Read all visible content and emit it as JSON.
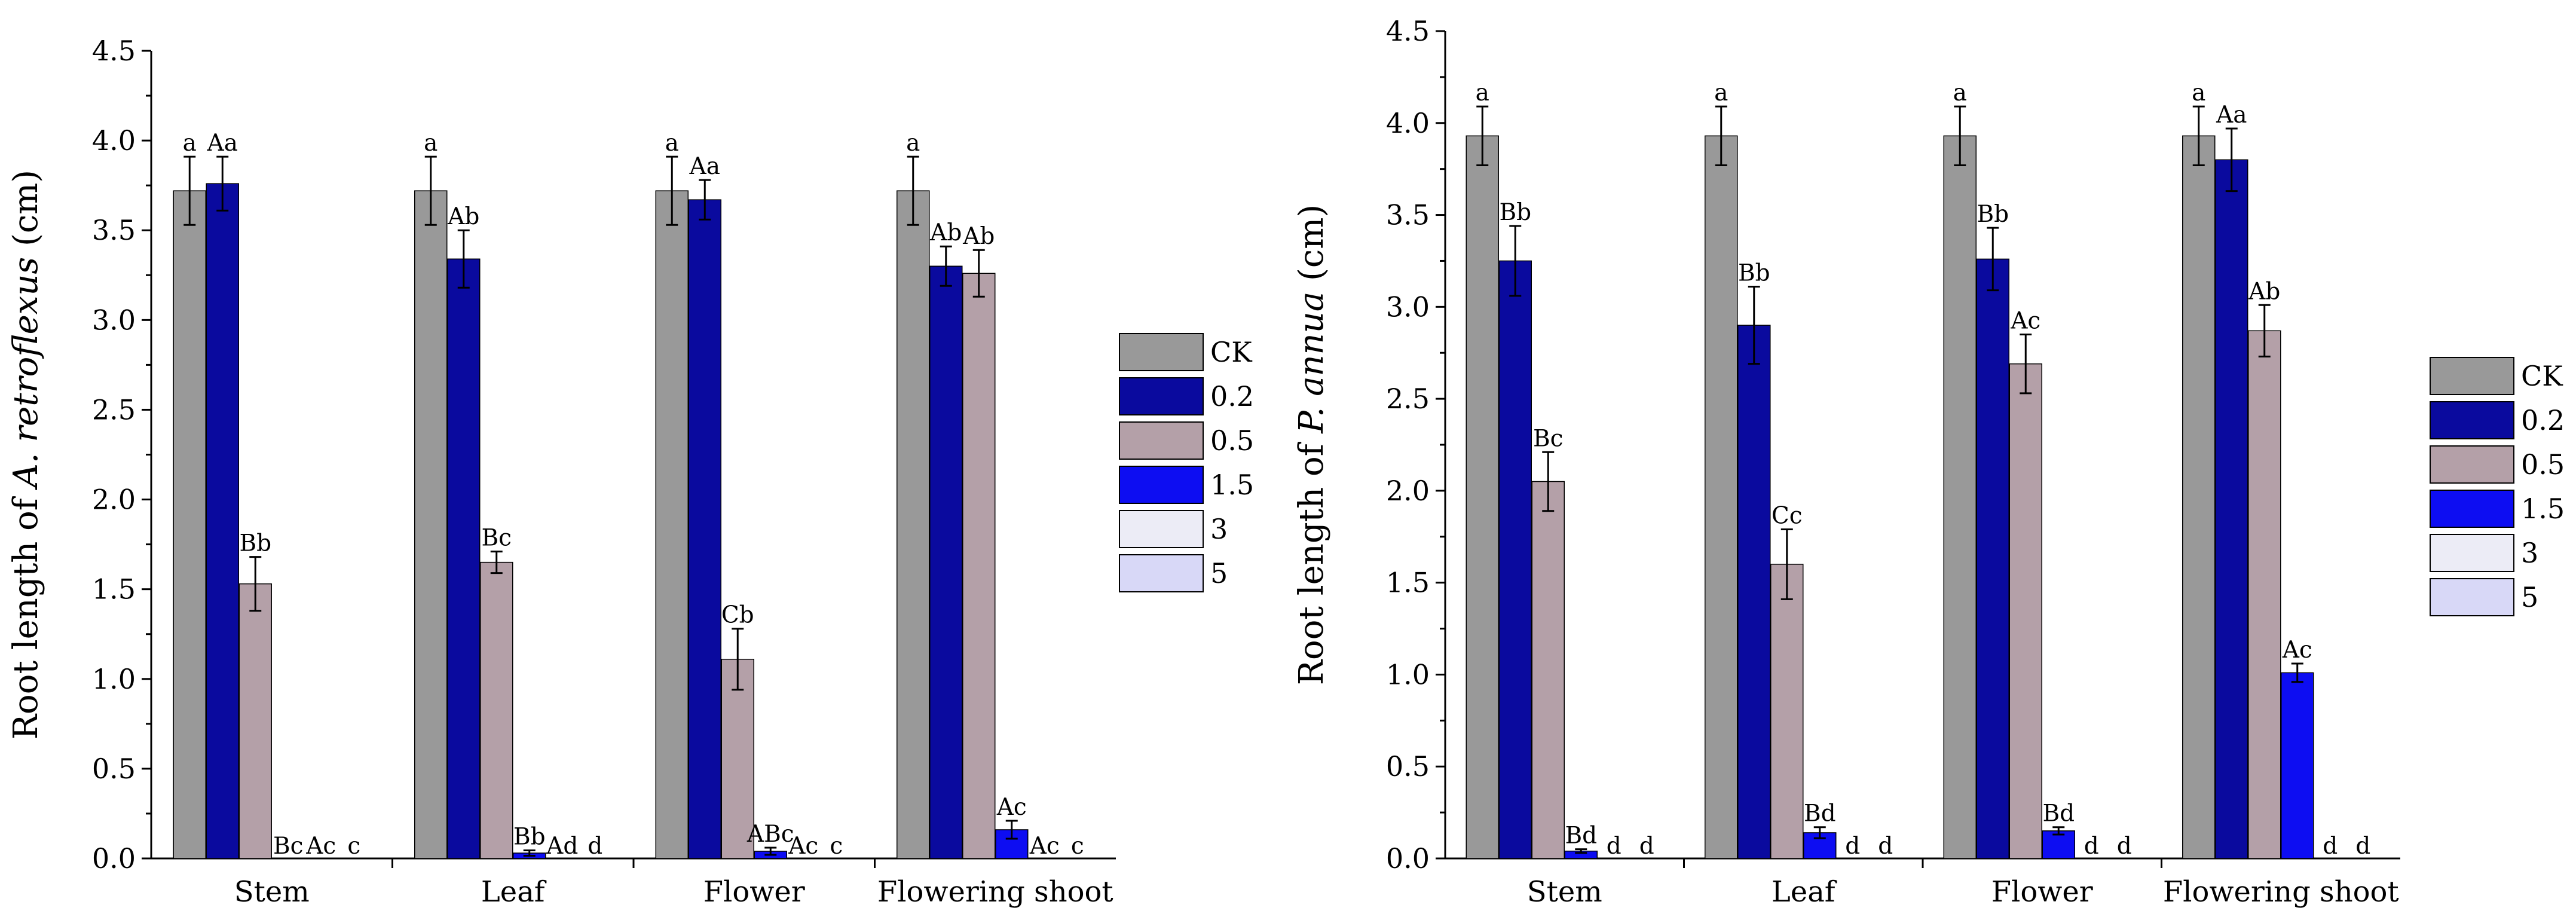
{
  "legend_items": [
    {
      "label": "CK",
      "color": "#999999"
    },
    {
      "label": "0.2",
      "color": "#0a0a9e"
    },
    {
      "label": "0.5",
      "color": "#b4a0a8"
    },
    {
      "label": "1.5",
      "color": "#0d0df2"
    },
    {
      "label": "3",
      "color": "#ececf6"
    },
    {
      "label": "5",
      "color": "#d8d8f7"
    }
  ],
  "chart_data": [
    {
      "type": "bar",
      "ylabel_prefix": "Root length of ",
      "ylabel_species": "A. retroflexus",
      "ylabel_suffix": " (cm)",
      "xlabel": "",
      "ylim": [
        0,
        4.5
      ],
      "yticks": [
        "0.0",
        "0.5",
        "1.0",
        "1.5",
        "2.0",
        "2.5",
        "3.0",
        "3.5",
        "4.0",
        "4.5"
      ],
      "categories": [
        "Stem",
        "Leaf",
        "Flower",
        "Flowering shoot"
      ],
      "series": [
        {
          "name": "CK",
          "values": [
            3.72,
            3.72,
            3.72,
            3.72
          ],
          "errors": [
            0.19,
            0.19,
            0.19,
            0.19
          ],
          "labels": [
            "a",
            "a",
            "a",
            "a"
          ]
        },
        {
          "name": "0.2",
          "values": [
            3.76,
            3.34,
            3.67,
            3.3
          ],
          "errors": [
            0.15,
            0.16,
            0.11,
            0.11
          ],
          "labels": [
            "Aa",
            "Ab",
            "Aa",
            "Ab"
          ]
        },
        {
          "name": "0.5",
          "values": [
            1.53,
            1.65,
            1.11,
            3.26
          ],
          "errors": [
            0.15,
            0.06,
            0.17,
            0.13
          ],
          "labels": [
            "Bb",
            "Bc",
            "Cb",
            "Ab"
          ]
        },
        {
          "name": "1.5",
          "values": [
            0,
            0.03,
            0.04,
            0.16
          ],
          "errors": [
            0,
            0.015,
            0.02,
            0.05
          ],
          "labels": [
            "Bc",
            "Bb",
            "ABc",
            "Ac"
          ]
        },
        {
          "name": "3",
          "values": [
            0,
            0,
            0,
            0
          ],
          "errors": [
            0,
            0,
            0,
            0
          ],
          "labels": [
            "Ac",
            "Ad",
            "Ac",
            "Ac"
          ]
        },
        {
          "name": "5",
          "values": [
            0,
            0,
            0,
            0
          ],
          "errors": [
            0,
            0,
            0,
            0
          ],
          "labels": [
            "c",
            "d",
            "c",
            "c"
          ]
        }
      ]
    },
    {
      "type": "bar",
      "ylabel_prefix": "Root length of ",
      "ylabel_species": "P. annua",
      "ylabel_suffix": " (cm)",
      "xlabel": "",
      "ylim": [
        0,
        4.5
      ],
      "yticks": [
        "0.0",
        "0.5",
        "1.0",
        "1.5",
        "2.0",
        "2.5",
        "3.0",
        "3.5",
        "4.0",
        "4.5"
      ],
      "categories": [
        "Stem",
        "Leaf",
        "Flower",
        "Flowering shoot"
      ],
      "series": [
        {
          "name": "CK",
          "values": [
            3.93,
            3.93,
            3.93,
            3.93
          ],
          "errors": [
            0.16,
            0.16,
            0.16,
            0.16
          ],
          "labels": [
            "a",
            "a",
            "a",
            "a"
          ]
        },
        {
          "name": "0.2",
          "values": [
            3.25,
            2.9,
            3.26,
            3.8
          ],
          "errors": [
            0.19,
            0.21,
            0.17,
            0.17
          ],
          "labels": [
            "Bb",
            "Bb",
            "Bb",
            "Aa"
          ]
        },
        {
          "name": "0.5",
          "values": [
            2.05,
            1.6,
            2.69,
            2.87
          ],
          "errors": [
            0.16,
            0.19,
            0.16,
            0.14
          ],
          "labels": [
            "Bc",
            "Cc",
            "Ac",
            "Ab"
          ]
        },
        {
          "name": "1.5",
          "values": [
            0.04,
            0.14,
            0.15,
            1.01
          ],
          "errors": [
            0.01,
            0.03,
            0.02,
            0.05
          ],
          "labels": [
            "Bd",
            "Bd",
            "Bd",
            "Ac"
          ]
        },
        {
          "name": "3",
          "values": [
            0,
            0,
            0,
            0
          ],
          "errors": [
            0,
            0,
            0,
            0
          ],
          "labels": [
            "d",
            "d",
            "d",
            "d"
          ]
        },
        {
          "name": "5",
          "values": [
            0,
            0,
            0,
            0
          ],
          "errors": [
            0,
            0,
            0,
            0
          ],
          "labels": [
            "d",
            "d",
            "d",
            "d"
          ]
        }
      ]
    }
  ]
}
